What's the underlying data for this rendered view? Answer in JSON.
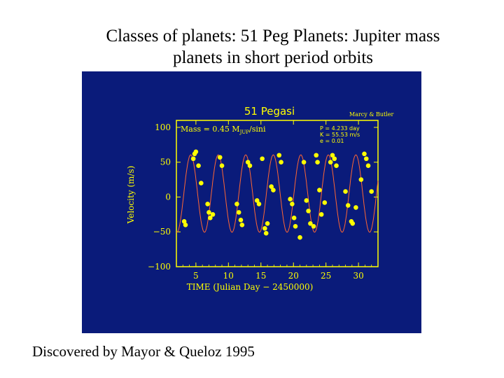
{
  "slide": {
    "title_line1": "Classes of planets: 51 Peg Planets: Jupiter mass",
    "title_line2": "planets in short period orbits",
    "caption": "Discovered by Mayor & Queloz 1995"
  },
  "colors": {
    "panel_bg": "#0a1b7a",
    "foreground": "#ffff00",
    "fit_curve": "#ff6633"
  },
  "chart_data": {
    "type": "scatter",
    "title": "51 Pegasi",
    "credit": "Marcy & Butler",
    "mass_label": "Mass = 0.45 M",
    "mass_label_sub": "JUP",
    "mass_label_tail": "/sini",
    "params": [
      "P = 4.233 day",
      "K = 55.53 m/s",
      "e = 0.01"
    ],
    "xlabel": "TIME  (Julian Day − 2450000)",
    "ylabel": "Velocity  (m/s)",
    "xlim": [
      2,
      33
    ],
    "ylim": [
      -100,
      110
    ],
    "x_ticks": [
      5,
      10,
      15,
      20,
      25,
      30
    ],
    "y_ticks": [
      100,
      50,
      0,
      -50,
      -100
    ],
    "y_tick_labels": [
      "100",
      "50",
      "0",
      "−50",
      "−100"
    ],
    "fit": {
      "period": 4.233,
      "amplitude": 55.5,
      "phase_ref": 4.2,
      "offset": 5
    },
    "series": [
      {
        "points": [
          [
            3.2,
            -35
          ],
          [
            3.4,
            -40
          ],
          [
            4.6,
            55
          ],
          [
            4.8,
            62
          ],
          [
            5.0,
            65
          ],
          [
            5.4,
            45
          ],
          [
            5.8,
            20
          ],
          [
            6.8,
            -10
          ],
          [
            7.0,
            -22
          ],
          [
            7.2,
            -30
          ],
          [
            7.6,
            -25
          ],
          [
            8.7,
            57
          ],
          [
            9.0,
            45
          ],
          [
            11.3,
            -10
          ],
          [
            11.6,
            -22
          ],
          [
            11.9,
            -33
          ],
          [
            12.1,
            -40
          ],
          [
            13.0,
            50
          ],
          [
            13.3,
            45
          ],
          [
            14.4,
            -5
          ],
          [
            14.7,
            -10
          ],
          [
            15.2,
            55
          ],
          [
            15.6,
            -45
          ],
          [
            15.8,
            -52
          ],
          [
            16.0,
            -38
          ],
          [
            16.6,
            15
          ],
          [
            16.9,
            10
          ],
          [
            17.8,
            60
          ],
          [
            18.1,
            50
          ],
          [
            19.5,
            -3
          ],
          [
            19.8,
            -10
          ],
          [
            20.1,
            -30
          ],
          [
            20.3,
            -42
          ],
          [
            21.0,
            -58
          ],
          [
            21.6,
            50
          ],
          [
            22.0,
            -5
          ],
          [
            22.3,
            -20
          ],
          [
            22.6,
            -38
          ],
          [
            23.1,
            -42
          ],
          [
            23.5,
            60
          ],
          [
            23.7,
            50
          ],
          [
            24.0,
            10
          ],
          [
            24.3,
            -25
          ],
          [
            24.8,
            -8
          ],
          [
            25.7,
            50
          ],
          [
            26.0,
            60
          ],
          [
            26.3,
            55
          ],
          [
            26.6,
            45
          ],
          [
            28.0,
            8
          ],
          [
            28.4,
            -12
          ],
          [
            28.9,
            -35
          ],
          [
            29.1,
            -38
          ],
          [
            29.6,
            -15
          ],
          [
            30.4,
            25
          ],
          [
            30.9,
            62
          ],
          [
            31.2,
            55
          ],
          [
            31.5,
            45
          ],
          [
            32.0,
            8
          ]
        ]
      }
    ]
  }
}
